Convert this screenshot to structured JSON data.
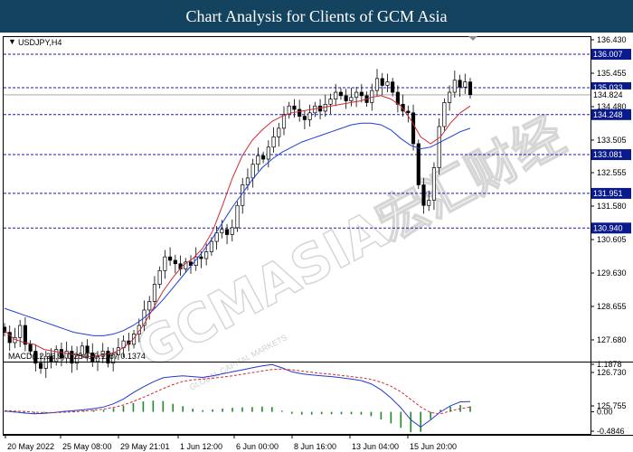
{
  "page_title": "Chart Analysis for Clients of GCM Asia",
  "watermark": {
    "text": "GCMASIA",
    "chinese": "宏汇财经",
    "tagline": "GLOBAL CAPITAL MARKETS"
  },
  "chart_data": [
    {
      "type": "candlestick",
      "symbol_label": "USDJPY,H4",
      "ylim": [
        125.755,
        136.43
      ],
      "y_ticks": [
        "136.430",
        "135.455",
        "134.480",
        "133.505",
        "132.555",
        "131.580",
        "130.605",
        "129.630",
        "128.655",
        "127.680",
        "126.730",
        "125.755"
      ],
      "x_ticks": [
        "20 May 2022",
        "25 May 08:00",
        "29 May 21:01",
        "1 Jun 12:00",
        "6 Jun 00:00",
        "8 Jun 16:00",
        "13 Jun 04:00",
        "15 Jun 20:00"
      ],
      "levels": [
        {
          "value": 136.007,
          "label": "136.007"
        },
        {
          "value": 135.033,
          "label": "135.033"
        },
        {
          "value": 134.248,
          "label": "134.248"
        },
        {
          "value": 133.081,
          "label": "133.081"
        },
        {
          "value": 131.951,
          "label": "131.951"
        },
        {
          "value": 130.94,
          "label": "130.940"
        }
      ],
      "current_price": {
        "value": 134.824,
        "label": "134.824"
      },
      "candles_close_path": [
        127.9,
        127.6,
        127.75,
        128.1,
        127.55,
        127.35,
        127.0,
        126.85,
        127.2,
        127.05,
        127.4,
        127.15,
        127.35,
        127.0,
        127.25,
        127.5,
        127.3,
        127.05,
        127.2,
        127.35,
        127.0,
        127.25,
        127.45,
        127.65,
        127.55,
        127.85,
        128.1,
        128.55,
        128.8,
        129.3,
        129.7,
        130.1,
        130.0,
        129.9,
        129.75,
        129.95,
        129.85,
        130.1,
        130.05,
        130.25,
        130.55,
        130.8,
        130.9,
        130.75,
        130.95,
        131.6,
        132.2,
        132.4,
        132.8,
        133.05,
        132.95,
        133.3,
        133.6,
        133.85,
        134.25,
        134.5,
        134.4,
        134.2,
        134.1,
        134.3,
        134.5,
        134.35,
        134.55,
        134.7,
        134.9,
        134.8,
        134.65,
        134.75,
        134.9,
        134.8,
        134.6,
        134.95,
        135.3,
        135.1,
        135.2,
        134.9,
        134.55,
        134.35,
        134.3,
        133.4,
        132.2,
        131.6,
        131.75,
        132.7,
        133.9,
        134.6,
        134.9,
        135.25,
        135.05,
        135.2,
        134.83
      ],
      "sma_red_path": [
        127.95,
        127.7,
        127.6,
        127.55,
        127.4,
        127.35,
        127.3,
        127.25,
        127.2,
        127.2,
        127.25,
        127.3,
        127.45,
        127.7,
        128.1,
        128.6,
        129.1,
        129.5,
        129.85,
        130.05,
        130.35,
        130.85,
        131.6,
        132.4,
        133.05,
        133.5,
        133.8,
        134.05,
        134.2,
        134.3,
        134.35,
        134.4,
        134.45,
        134.5,
        134.55,
        134.6,
        134.65,
        134.75,
        134.8,
        134.7,
        134.5,
        134.1,
        133.6,
        133.4,
        133.6,
        134.0,
        134.3,
        134.5
      ],
      "sma_blue_path": [
        128.6,
        128.5,
        128.4,
        128.3,
        128.2,
        128.1,
        128.0,
        127.9,
        127.85,
        127.8,
        127.8,
        127.85,
        127.95,
        128.1,
        128.3,
        128.55,
        128.85,
        129.2,
        129.55,
        129.9,
        130.25,
        130.65,
        131.1,
        131.55,
        131.95,
        132.35,
        132.7,
        132.95,
        133.15,
        133.3,
        133.45,
        133.55,
        133.65,
        133.75,
        133.85,
        133.95,
        134.0,
        134.0,
        133.95,
        133.8,
        133.55,
        133.35,
        133.25,
        133.3,
        133.45,
        133.6,
        133.75,
        133.85
      ]
    },
    {
      "type": "macd",
      "label": "MACD(12,26,9) 0.2540 0.1167 0.1374",
      "ylim": [
        -0.4846,
        1.1878
      ],
      "y_ticks": [
        "1.1878",
        "0.00",
        "-0.4846"
      ],
      "macd_line_path": [
        0.02,
        0.0,
        -0.03,
        -0.05,
        -0.04,
        -0.02,
        0.01,
        0.03,
        0.05,
        0.08,
        0.12,
        0.2,
        0.32,
        0.48,
        0.62,
        0.75,
        0.85,
        0.88,
        0.9,
        0.88,
        0.86,
        0.9,
        0.95,
        1.0,
        1.05,
        1.1,
        1.15,
        1.18,
        1.1,
        1.0,
        0.95,
        0.92,
        0.9,
        0.88,
        0.85,
        0.82,
        0.78,
        0.7,
        0.55,
        0.35,
        0.1,
        -0.2,
        -0.38,
        -0.2,
        0.0,
        0.15,
        0.25,
        0.254
      ],
      "signal_line_path": [
        0.03,
        0.02,
        0.01,
        -0.01,
        -0.02,
        -0.02,
        -0.01,
        0.0,
        0.02,
        0.04,
        0.07,
        0.11,
        0.17,
        0.26,
        0.36,
        0.47,
        0.58,
        0.68,
        0.76,
        0.8,
        0.82,
        0.84,
        0.87,
        0.9,
        0.94,
        0.98,
        1.02,
        1.06,
        1.07,
        1.05,
        1.02,
        0.99,
        0.96,
        0.94,
        0.91,
        0.88,
        0.85,
        0.81,
        0.74,
        0.64,
        0.5,
        0.31,
        0.12,
        -0.02,
        -0.05,
        0.02,
        0.08,
        0.117
      ]
    }
  ]
}
